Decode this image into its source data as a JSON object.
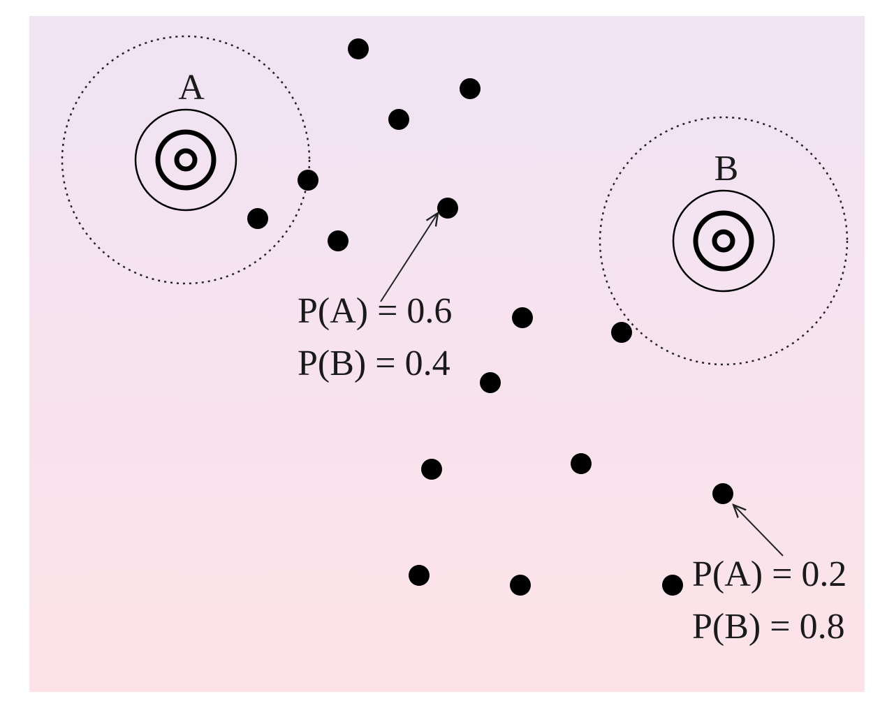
{
  "clusters": [
    {
      "label": "A"
    },
    {
      "label": "B"
    }
  ],
  "annotations": [
    {
      "line1": "P(A) = 0.6",
      "line2": "P(B) = 0.4"
    },
    {
      "line1": "P(A) = 0.2",
      "line2": "P(B) = 0.8"
    }
  ],
  "colors": {
    "background_top": "#f0e3f4",
    "background_bottom": "#fde3e8",
    "ink": "#000000"
  }
}
